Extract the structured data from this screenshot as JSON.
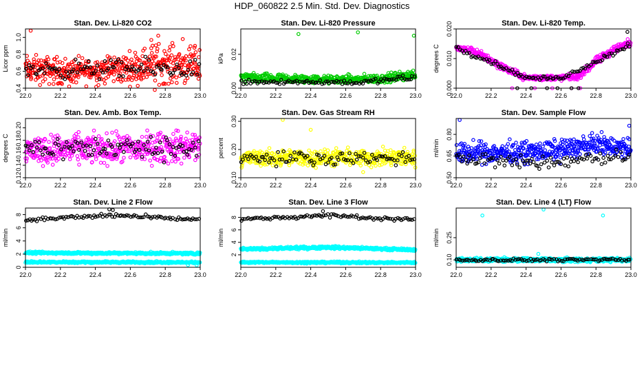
{
  "title": "HDP_060822  2.5 Min. Std. Dev. Diagnostics",
  "chart_data": [
    {
      "type": "scatter",
      "title": "Stan. Dev. Li-820 CO2",
      "ylabel": "Licor ppm",
      "color": "#ff0000",
      "xlim": [
        22.0,
        23.0
      ],
      "ylim": [
        0.4,
        1.1
      ],
      "xticks": [
        "22.0",
        "22.2",
        "22.4",
        "22.6",
        "22.8",
        "23.0"
      ],
      "yticks": [
        "0.4",
        "0.6",
        "0.8",
        "1.0"
      ],
      "ytick_values": [
        0.4,
        0.6,
        0.8,
        1.0
      ],
      "series": [
        {
          "name": "main",
          "band": [
            [
              22.0,
              0.62,
              0.14
            ],
            [
              22.3,
              0.6,
              0.13
            ],
            [
              22.6,
              0.64,
              0.15
            ],
            [
              22.75,
              0.7,
              0.2
            ],
            [
              23.0,
              0.66,
              0.16
            ]
          ],
          "outliers": [
            [
              22.03,
              1.08
            ],
            [
              22.72,
              0.97
            ],
            [
              22.76,
              1.02
            ],
            [
              22.9,
              0.98
            ],
            [
              22.97,
              0.9
            ],
            [
              22.25,
              0.42
            ],
            [
              22.74,
              0.38
            ]
          ]
        },
        {
          "name": "black",
          "band": [
            [
              22.0,
              0.62,
              0.09
            ],
            [
              23.0,
              0.63,
              0.1
            ]
          ],
          "outliers": []
        }
      ]
    },
    {
      "type": "scatter",
      "title": "Stan. Dev. Li-820 Pressure",
      "ylabel": "kPa",
      "color": "#00cc00",
      "xlim": [
        22.0,
        23.0
      ],
      "ylim": [
        0.0,
        0.035
      ],
      "xticks": [
        "22.0",
        "22.2",
        "22.4",
        "22.6",
        "22.8",
        "23.0"
      ],
      "yticks": [
        "0.00",
        "0.02"
      ],
      "ytick_values": [
        0.0,
        0.02
      ],
      "series": [
        {
          "name": "main",
          "band": [
            [
              22.0,
              0.006,
              0.0025
            ],
            [
              22.5,
              0.005,
              0.002
            ],
            [
              22.8,
              0.0055,
              0.0022
            ],
            [
              23.0,
              0.008,
              0.0025
            ]
          ],
          "outliers": [
            [
              22.33,
              0.032
            ],
            [
              22.67,
              0.033
            ],
            [
              22.99,
              0.031
            ]
          ]
        },
        {
          "name": "black",
          "band": [
            [
              22.0,
              0.004,
              0.0015
            ],
            [
              22.7,
              0.0035,
              0.0012
            ],
            [
              23.0,
              0.0065,
              0.0015
            ]
          ],
          "outliers": []
        }
      ]
    },
    {
      "type": "scatter",
      "title": "Stan. Dev. Li-820 Temp.",
      "ylabel": "degrees C",
      "color": "#ff00ff",
      "xlim": [
        22.0,
        23.0
      ],
      "ylim": [
        0.0,
        0.02
      ],
      "xticks": [
        "22.0",
        "22.2",
        "22.4",
        "22.6",
        "22.8",
        "23.0"
      ],
      "yticks": [
        "0.000",
        "0.010",
        "0.020"
      ],
      "ytick_values": [
        0.0,
        0.01,
        0.02
      ],
      "series": [
        {
          "name": "main",
          "band": [
            [
              22.0,
              0.0135,
              0.001
            ],
            [
              22.1,
              0.0125,
              0.001
            ],
            [
              22.2,
              0.0095,
              0.0012
            ],
            [
              22.3,
              0.006,
              0.001
            ],
            [
              22.4,
              0.0035,
              0.0008
            ],
            [
              22.5,
              0.0035,
              0.0008
            ],
            [
              22.6,
              0.0035,
              0.0008
            ],
            [
              22.7,
              0.004,
              0.0009
            ],
            [
              22.8,
              0.009,
              0.0012
            ],
            [
              22.9,
              0.013,
              0.0012
            ],
            [
              23.0,
              0.0155,
              0.0012
            ]
          ],
          "outliers": [
            [
              22.32,
              0.0
            ],
            [
              22.45,
              0.0
            ],
            [
              22.55,
              0.0
            ],
            [
              22.66,
              0.0
            ],
            [
              22.71,
              0.0
            ]
          ]
        },
        {
          "name": "black",
          "band": [
            [
              22.0,
              0.0135,
              0.0006
            ],
            [
              22.2,
              0.009,
              0.0008
            ],
            [
              22.4,
              0.0035,
              0.0005
            ],
            [
              22.6,
              0.0033,
              0.0005
            ],
            [
              22.8,
              0.009,
              0.0008
            ],
            [
              23.0,
              0.015,
              0.0008
            ]
          ],
          "outliers": [
            [
              22.35,
              0.0
            ],
            [
              22.43,
              0.0
            ],
            [
              22.52,
              0.0
            ],
            [
              22.58,
              0.0
            ],
            [
              22.66,
              0.0
            ],
            [
              22.7,
              0.0
            ],
            [
              22.98,
              0.019
            ]
          ]
        }
      ]
    },
    {
      "type": "scatter",
      "title": "Stan. Dev. Amb. Box Temp.",
      "ylabel": "degrees C",
      "color": "#ff00ff",
      "xlim": [
        22.0,
        23.0
      ],
      "ylim": [
        0.12,
        0.215
      ],
      "xticks": [
        "22.0",
        "22.2",
        "22.4",
        "22.6",
        "22.8",
        "23.0"
      ],
      "yticks": [
        "0.12",
        "0.14",
        "0.16",
        "0.18",
        "0.20"
      ],
      "ytick_values": [
        0.12,
        0.14,
        0.16,
        0.18,
        0.2
      ],
      "series": [
        {
          "name": "main",
          "band": [
            [
              22.0,
              0.165,
              0.02
            ],
            [
              22.5,
              0.166,
              0.02
            ],
            [
              23.0,
              0.17,
              0.022
            ]
          ],
          "outliers": []
        },
        {
          "name": "black",
          "band": [
            [
              22.0,
              0.168,
              0.015
            ],
            [
              23.0,
              0.168,
              0.016
            ]
          ],
          "outliers": []
        }
      ]
    },
    {
      "type": "scatter",
      "title": "Stan. Dev. Gas Stream RH",
      "ylabel": "percent",
      "color": "#ffff00",
      "xlim": [
        22.0,
        23.0
      ],
      "ylim": [
        0.1,
        0.31
      ],
      "xticks": [
        "22.0",
        "22.2",
        "22.4",
        "22.6",
        "22.8",
        "23.0"
      ],
      "yticks": [
        "0.10",
        "0.20",
        "0.30"
      ],
      "ytick_values": [
        0.1,
        0.2,
        0.3
      ],
      "series": [
        {
          "name": "main",
          "band": [
            [
              22.0,
              0.17,
              0.025
            ],
            [
              22.5,
              0.17,
              0.025
            ],
            [
              23.0,
              0.17,
              0.028
            ]
          ],
          "outliers": [
            [
              22.24,
              0.305
            ],
            [
              22.4,
              0.27
            ],
            [
              22.7,
              0.12
            ]
          ]
        },
        {
          "name": "black",
          "band": [
            [
              22.0,
              0.17,
              0.02
            ],
            [
              23.0,
              0.17,
              0.02
            ]
          ],
          "outliers": []
        }
      ]
    },
    {
      "type": "scatter",
      "title": "Stan. Dev. Sample Flow",
      "ylabel": "ml/min",
      "color": "#0000ff",
      "xlim": [
        22.0,
        23.0
      ],
      "ylim": [
        0.5,
        0.91
      ],
      "xticks": [
        "22.0",
        "22.2",
        "22.4",
        "22.6",
        "22.8",
        "23.0"
      ],
      "yticks": [
        "0.50",
        "0.65",
        "0.80"
      ],
      "ytick_values": [
        0.5,
        0.65,
        0.8
      ],
      "series": [
        {
          "name": "main",
          "band": [
            [
              22.0,
              0.67,
              0.06
            ],
            [
              22.5,
              0.68,
              0.06
            ],
            [
              22.8,
              0.73,
              0.06
            ],
            [
              23.0,
              0.7,
              0.06
            ]
          ],
          "outliers": [
            [
              22.02,
              0.9
            ],
            [
              22.99,
              0.86
            ]
          ]
        },
        {
          "name": "black",
          "band": [
            [
              22.0,
              0.63,
              0.04
            ],
            [
              22.5,
              0.6,
              0.04
            ],
            [
              23.0,
              0.66,
              0.04
            ]
          ],
          "outliers": []
        }
      ]
    },
    {
      "type": "scatter",
      "title": "Stan. Dev. Line 2 Flow",
      "ylabel": "ml/min",
      "color": "#00ffff",
      "xlim": [
        22.0,
        23.0
      ],
      "ylim": [
        0.0,
        9.0
      ],
      "xticks": [
        "22.0",
        "22.2",
        "22.4",
        "22.6",
        "22.8",
        "23.0"
      ],
      "yticks": [
        "0",
        "2",
        "4",
        "6",
        "8"
      ],
      "ytick_values": [
        0,
        2,
        4,
        6,
        8
      ],
      "series": [
        {
          "name": "upper",
          "band": [
            [
              22.0,
              2.2,
              0.15
            ],
            [
              23.0,
              2.1,
              0.15
            ]
          ],
          "outliers": []
        },
        {
          "name": "lower",
          "band": [
            [
              22.0,
              0.8,
              0.12
            ],
            [
              23.0,
              0.75,
              0.12
            ]
          ],
          "outliers": [
            [
              22.98,
              0.3
            ],
            [
              22.93,
              0.35
            ]
          ]
        },
        {
          "name": "black",
          "band": [
            [
              22.0,
              7.2,
              0.2
            ],
            [
              22.5,
              7.9,
              0.3
            ],
            [
              23.0,
              7.2,
              0.2
            ]
          ],
          "outliers": [
            [
              22.48,
              8.8
            ],
            [
              22.5,
              8.7
            ]
          ]
        }
      ]
    },
    {
      "type": "scatter",
      "title": "Stan. Dev. Line 3 Flow",
      "ylabel": "ml/min",
      "color": "#00ffff",
      "xlim": [
        22.0,
        23.0
      ],
      "ylim": [
        0.0,
        9.5
      ],
      "xticks": [
        "22.0",
        "22.2",
        "22.4",
        "22.6",
        "22.8",
        "23.0"
      ],
      "yticks": [
        "2",
        "4",
        "6",
        "8"
      ],
      "ytick_values": [
        2,
        4,
        6,
        8
      ],
      "series": [
        {
          "name": "upper",
          "band": [
            [
              22.0,
              2.9,
              0.15
            ],
            [
              22.5,
              3.2,
              0.2
            ],
            [
              23.0,
              2.8,
              0.15
            ]
          ],
          "outliers": []
        },
        {
          "name": "lower",
          "band": [
            [
              22.0,
              0.8,
              0.12
            ],
            [
              23.0,
              0.75,
              0.12
            ]
          ],
          "outliers": []
        },
        {
          "name": "black",
          "band": [
            [
              22.0,
              7.7,
              0.2
            ],
            [
              22.5,
              8.3,
              0.3
            ],
            [
              23.0,
              7.6,
              0.2
            ]
          ],
          "outliers": [
            [
              22.47,
              9.0
            ]
          ]
        }
      ]
    },
    {
      "type": "scatter",
      "title": "Stan. Dev. Line 4 (LT) Flow",
      "ylabel": "ml/min",
      "color": "#00ffff",
      "xlim": [
        22.0,
        23.0
      ],
      "ylim": [
        0.05,
        0.45
      ],
      "xticks": [
        "22.0",
        "22.2",
        "22.4",
        "22.6",
        "22.8",
        "23.0"
      ],
      "yticks": [
        "0.10",
        "0.25"
      ],
      "ytick_values": [
        0.1,
        0.25
      ],
      "series": [
        {
          "name": "main",
          "band": [
            [
              22.0,
              0.1,
              0.012
            ],
            [
              23.0,
              0.1,
              0.012
            ]
          ],
          "outliers": [
            [
              22.15,
              0.4
            ],
            [
              22.5,
              0.44
            ],
            [
              22.84,
              0.4
            ],
            [
              22.47,
              0.14
            ]
          ]
        },
        {
          "name": "black",
          "band": [
            [
              22.0,
              0.1,
              0.008
            ],
            [
              23.0,
              0.1,
              0.008
            ]
          ],
          "outliers": []
        }
      ]
    }
  ]
}
